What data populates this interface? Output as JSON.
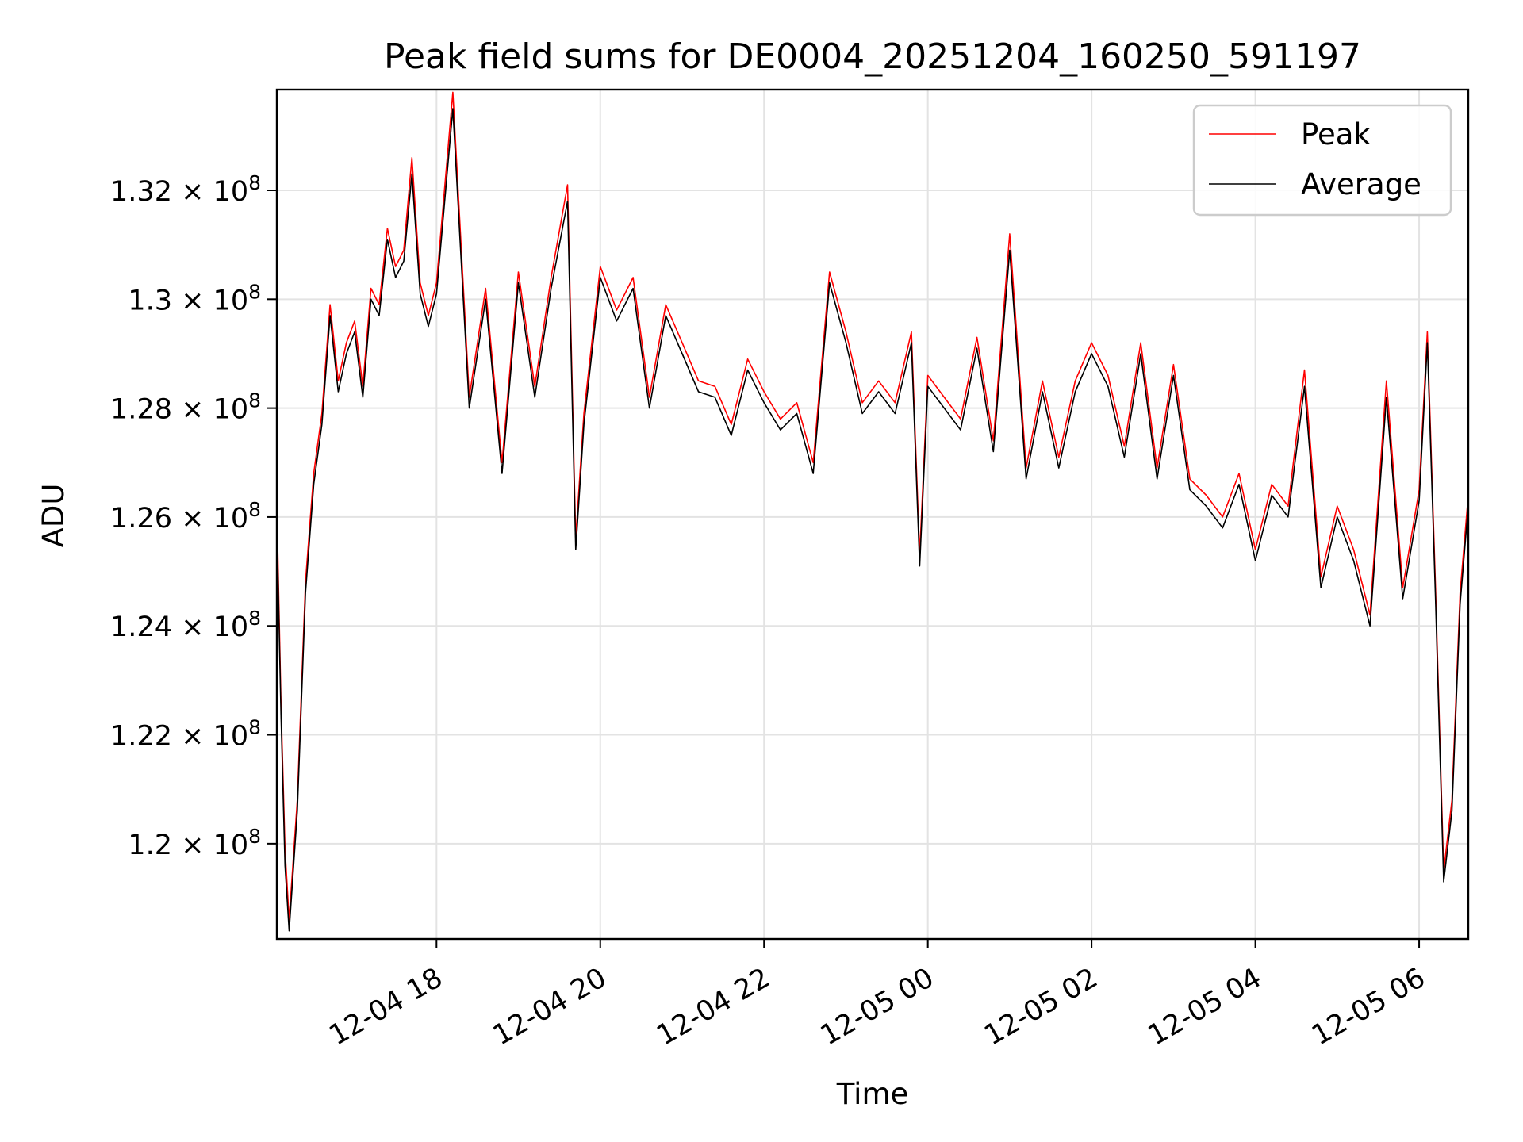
{
  "chart_data": {
    "type": "line",
    "title": "Peak field sums for DE0004_20251204_160250_591197",
    "xlabel": "Time",
    "ylabel": "ADU",
    "x_range_hours": [
      16.05,
      30.6
    ],
    "ylim": [
      118250000,
      133850000
    ],
    "grid": true,
    "legend_position": "top-right",
    "x_ticks": [
      {
        "value": 18,
        "label": "12-04 18"
      },
      {
        "value": 20,
        "label": "12-04 20"
      },
      {
        "value": 22,
        "label": "12-04 22"
      },
      {
        "value": 24,
        "label": "12-05 00"
      },
      {
        "value": 26,
        "label": "12-05 02"
      },
      {
        "value": 28,
        "label": "12-05 04"
      },
      {
        "value": 30,
        "label": "12-05 06"
      }
    ],
    "y_ticks": [
      {
        "value": 120000000,
        "mantissa": "1.2",
        "exponent": "8"
      },
      {
        "value": 122000000,
        "mantissa": "1.22",
        "exponent": "8"
      },
      {
        "value": 124000000,
        "mantissa": "1.24",
        "exponent": "8"
      },
      {
        "value": 126000000,
        "mantissa": "1.26",
        "exponent": "8"
      },
      {
        "value": 128000000,
        "mantissa": "1.28",
        "exponent": "8"
      },
      {
        "value": 130000000,
        "mantissa": "1.3",
        "exponent": "8"
      },
      {
        "value": 132000000,
        "mantissa": "1.32",
        "exponent": "8"
      }
    ],
    "tick_multiplier": "×",
    "tick_base": "10",
    "series": [
      {
        "name": "Peak",
        "color": "#ff0000",
        "x": [
          16.05,
          16.1,
          16.15,
          16.2,
          16.3,
          16.4,
          16.5,
          16.6,
          16.7,
          16.8,
          16.9,
          17.0,
          17.1,
          17.2,
          17.3,
          17.4,
          17.5,
          17.6,
          17.7,
          17.8,
          17.9,
          18.0,
          18.2,
          18.4,
          18.6,
          18.8,
          19.0,
          19.2,
          19.4,
          19.6,
          19.7,
          19.8,
          20.0,
          20.2,
          20.4,
          20.6,
          20.8,
          21.0,
          21.2,
          21.4,
          21.6,
          21.8,
          22.0,
          22.2,
          22.4,
          22.6,
          22.8,
          23.0,
          23.2,
          23.4,
          23.6,
          23.8,
          23.9,
          24.0,
          24.2,
          24.4,
          24.6,
          24.8,
          25.0,
          25.2,
          25.4,
          25.6,
          25.8,
          26.0,
          26.2,
          26.4,
          26.6,
          26.8,
          27.0,
          27.2,
          27.4,
          27.6,
          27.8,
          28.0,
          28.2,
          28.4,
          28.6,
          28.8,
          29.0,
          29.2,
          29.4,
          29.6,
          29.8,
          30.0,
          30.1,
          30.2,
          30.3,
          30.4,
          30.5,
          30.6
        ],
        "values": [
          126200000,
          122600000,
          119900000,
          118600000,
          120800000,
          124800000,
          126800000,
          127900000,
          129900000,
          128500000,
          129200000,
          129600000,
          128400000,
          130200000,
          129900000,
          131300000,
          130600000,
          130900000,
          132600000,
          130300000,
          129700000,
          130300000,
          133800000,
          128200000,
          130200000,
          127000000,
          130500000,
          128400000,
          130400000,
          132100000,
          125600000,
          127900000,
          130600000,
          129800000,
          130400000,
          128200000,
          129900000,
          129200000,
          128500000,
          128400000,
          127700000,
          128900000,
          128300000,
          127800000,
          128100000,
          127000000,
          130500000,
          129400000,
          128100000,
          128500000,
          128100000,
          129400000,
          125300000,
          128600000,
          128200000,
          127800000,
          129300000,
          127400000,
          131200000,
          126900000,
          128500000,
          127100000,
          128500000,
          129200000,
          128600000,
          127300000,
          129200000,
          126900000,
          128800000,
          126700000,
          126400000,
          126000000,
          126800000,
          125400000,
          126600000,
          126200000,
          128700000,
          124900000,
          126200000,
          125400000,
          124200000,
          128500000,
          124700000,
          126500000,
          129400000,
          124700000,
          119500000,
          120800000,
          124600000,
          126400000
        ]
      },
      {
        "name": "Average",
        "color": "#000000",
        "x": [
          16.05,
          16.1,
          16.15,
          16.2,
          16.3,
          16.4,
          16.5,
          16.6,
          16.7,
          16.8,
          16.9,
          17.0,
          17.1,
          17.2,
          17.3,
          17.4,
          17.5,
          17.6,
          17.7,
          17.8,
          17.9,
          18.0,
          18.2,
          18.4,
          18.6,
          18.8,
          19.0,
          19.2,
          19.4,
          19.6,
          19.7,
          19.8,
          20.0,
          20.2,
          20.4,
          20.6,
          20.8,
          21.0,
          21.2,
          21.4,
          21.6,
          21.8,
          22.0,
          22.2,
          22.4,
          22.6,
          22.8,
          23.0,
          23.2,
          23.4,
          23.6,
          23.8,
          23.9,
          24.0,
          24.2,
          24.4,
          24.6,
          24.8,
          25.0,
          25.2,
          25.4,
          25.6,
          25.8,
          26.0,
          26.2,
          26.4,
          26.6,
          26.8,
          27.0,
          27.2,
          27.4,
          27.6,
          27.8,
          28.0,
          28.2,
          28.4,
          28.6,
          28.8,
          29.0,
          29.2,
          29.4,
          29.6,
          29.8,
          30.0,
          30.1,
          30.2,
          30.3,
          30.4,
          30.5,
          30.6
        ],
        "values": [
          125900000,
          122400000,
          119600000,
          118400000,
          120600000,
          124600000,
          126600000,
          127700000,
          129700000,
          128300000,
          129000000,
          129400000,
          128200000,
          130000000,
          129700000,
          131100000,
          130400000,
          130700000,
          132300000,
          130100000,
          129500000,
          130100000,
          133500000,
          128000000,
          130000000,
          126800000,
          130300000,
          128200000,
          130200000,
          131800000,
          125400000,
          127700000,
          130400000,
          129600000,
          130200000,
          128000000,
          129700000,
          129000000,
          128300000,
          128200000,
          127500000,
          128700000,
          128100000,
          127600000,
          127900000,
          126800000,
          130300000,
          129200000,
          127900000,
          128300000,
          127900000,
          129200000,
          125100000,
          128400000,
          128000000,
          127600000,
          129100000,
          127200000,
          130900000,
          126700000,
          128300000,
          126900000,
          128300000,
          129000000,
          128400000,
          127100000,
          129000000,
          126700000,
          128600000,
          126500000,
          126200000,
          125800000,
          126600000,
          125200000,
          126400000,
          126000000,
          128400000,
          124700000,
          126000000,
          125200000,
          124000000,
          128200000,
          124500000,
          126300000,
          129200000,
          124500000,
          119300000,
          120600000,
          124400000,
          126200000
        ]
      }
    ]
  }
}
